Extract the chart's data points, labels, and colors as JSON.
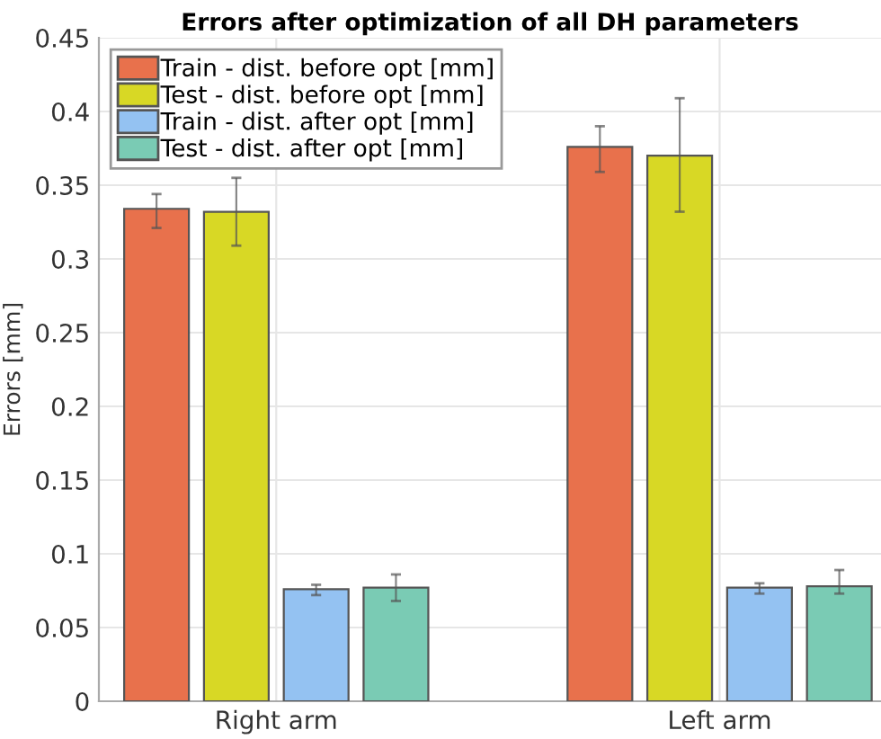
{
  "chart_data": {
    "type": "bar",
    "title": "Errors after optimization of all DH parameters",
    "ylabel": "Errors [mm]",
    "categories": [
      "Right arm",
      "Left arm"
    ],
    "series": [
      {
        "name": "Train - dist. before opt [mm]",
        "color": "#e8714c",
        "values": [
          0.334,
          0.376
        ],
        "errors": [
          [
            0.321,
            0.344
          ],
          [
            0.359,
            0.39
          ]
        ]
      },
      {
        "name": "Test - dist. before opt [mm]",
        "color": "#d8d825",
        "values": [
          0.332,
          0.37
        ],
        "errors": [
          [
            0.309,
            0.355
          ],
          [
            0.332,
            0.409
          ]
        ]
      },
      {
        "name": "Train - dist. after opt [mm]",
        "color": "#94c2f2",
        "values": [
          0.076,
          0.077
        ],
        "errors": [
          [
            0.072,
            0.079
          ],
          [
            0.073,
            0.08
          ]
        ]
      },
      {
        "name": "Test - dist. after opt [mm]",
        "color": "#7acbb4",
        "values": [
          0.077,
          0.078
        ],
        "errors": [
          [
            0.068,
            0.086
          ],
          [
            0.073,
            0.089
          ]
        ]
      }
    ],
    "ylim": [
      0,
      0.45
    ],
    "yticks": [
      0,
      0.05,
      0.1,
      0.15,
      0.2,
      0.25,
      0.3,
      0.35,
      0.4,
      0.45
    ],
    "grid": true,
    "legend": "top left"
  }
}
